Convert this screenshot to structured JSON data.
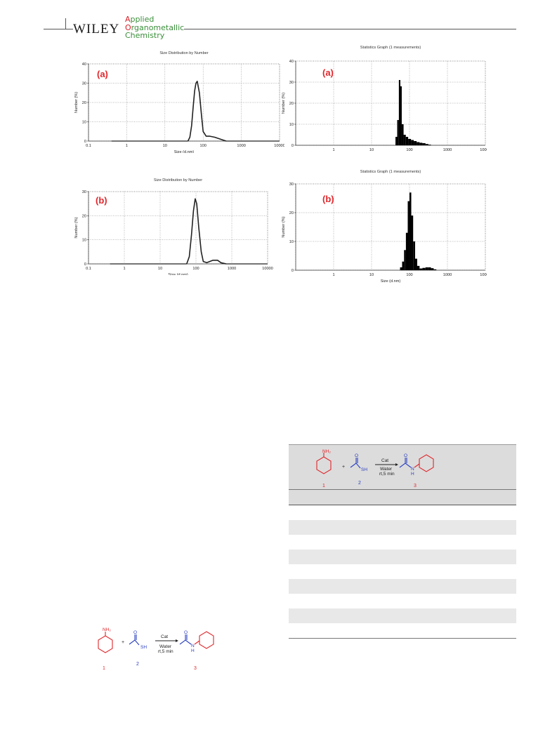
{
  "header": {
    "publisher": "WILEY",
    "journal_line1_cap": "A",
    "journal_line1_rest": "pplied",
    "journal_line2_cap": "O",
    "journal_line2_rest": "rganometallic",
    "journal_line3": "Chemistry"
  },
  "colors": {
    "panel_label": "#e0262b",
    "reactant_red": "#e0262b",
    "reactant_blue": "#2a3fbf",
    "journal_green": "#3a8f3a"
  },
  "chart_data": [
    {
      "type": "line",
      "title": "Size Distribution by Number",
      "panel_label": "(a)",
      "xlabel": "Size (d.nm)",
      "ylabel": "Number (%)",
      "xscale": "log",
      "xlim": [
        0.1,
        10000
      ],
      "ylim": [
        0,
        40
      ],
      "xticks": [
        "0.1",
        "1",
        "10",
        "100",
        "1000",
        "10000"
      ],
      "yticks": [
        "0",
        "10",
        "20",
        "30",
        "40"
      ],
      "grid": true,
      "x": [
        40,
        45,
        50,
        55,
        60,
        65,
        70,
        80,
        90,
        100,
        120,
        150,
        200,
        300,
        400
      ],
      "y": [
        0,
        2,
        8,
        18,
        26,
        30,
        31,
        25,
        14,
        5,
        2.5,
        2.5,
        2,
        0.8,
        0
      ]
    },
    {
      "type": "bar",
      "title": "Statistics Graph (1 measurements)",
      "panel_label": "(a)",
      "xlabel": "Size (d.nm)",
      "ylabel": "Number (%)",
      "xscale": "log",
      "xlim": [
        0.1,
        10000
      ],
      "ylim": [
        0,
        40
      ],
      "xticks": [
        "1",
        "10",
        "100",
        "1000",
        "10000"
      ],
      "yticks": [
        "0",
        "10",
        "20",
        "30",
        "40"
      ],
      "grid": true,
      "x": [
        45,
        50,
        55,
        60,
        65,
        75,
        85,
        100,
        120,
        140,
        170,
        200,
        240,
        290,
        340
      ],
      "y": [
        4,
        12,
        31,
        28,
        10,
        5,
        4,
        3,
        2.5,
        2,
        1.5,
        1.2,
        1,
        0.6,
        0.3
      ]
    },
    {
      "type": "line",
      "title": "Size Distribution by Number",
      "panel_label": "(b)",
      "xlabel": "Size (d.nm)",
      "ylabel": "Number (%)",
      "xscale": "log",
      "xlim": [
        0.1,
        10000
      ],
      "ylim": [
        0,
        30
      ],
      "xticks": [
        "0.1",
        "1",
        "10",
        "100",
        "1000",
        "10000"
      ],
      "yticks": [
        "0",
        "10",
        "20",
        "30"
      ],
      "grid": true,
      "x": [
        55,
        65,
        75,
        85,
        95,
        105,
        120,
        140,
        160,
        200,
        300,
        400,
        500,
        700
      ],
      "y": [
        0,
        3,
        12,
        22,
        27,
        25,
        15,
        5,
        1,
        0.5,
        1.5,
        1.5,
        0.5,
        0
      ]
    },
    {
      "type": "bar",
      "title": "Statistics Graph (1 measurements)",
      "panel_label": "(b)",
      "xlabel": "Size (d.nm)",
      "ylabel": "Number (%)",
      "xscale": "log",
      "xlim": [
        0.1,
        10000
      ],
      "ylim": [
        0,
        30
      ],
      "xticks": [
        "1",
        "10",
        "100",
        "1000",
        "10000"
      ],
      "yticks": [
        "0",
        "10",
        "20",
        "30"
      ],
      "grid": true,
      "x": [
        60,
        68,
        76,
        85,
        95,
        105,
        118,
        132,
        150,
        170,
        200,
        240,
        290,
        340,
        400,
        470
      ],
      "y": [
        1,
        3,
        7,
        13,
        24,
        27,
        19,
        10,
        4,
        1.5,
        0.6,
        0.8,
        1,
        1,
        0.7,
        0.3
      ]
    }
  ],
  "scheme": {
    "amine_label": "NH₂",
    "plus": "+",
    "thiol_label": "SH",
    "oxygen_label": "O",
    "arrow_top": "Cat",
    "arrow_bottom_1": "Water",
    "arrow_bottom_2": "rt,5 min",
    "amide_n_label": "N",
    "amide_h_label": "H",
    "compound_1": "1",
    "compound_2": "2",
    "compound_3": "3"
  }
}
